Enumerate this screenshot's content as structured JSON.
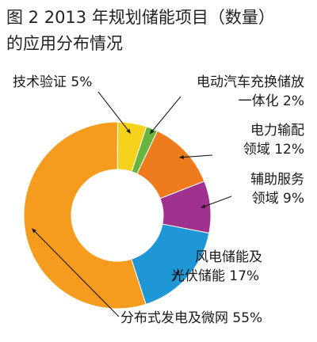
{
  "figure": {
    "title_line1": "图 2  2013 年规划储能项目（数量）",
    "title_line2": "的应用分布情况"
  },
  "chart_data": {
    "type": "pie",
    "style": "donut",
    "categories": [
      "技术验证",
      "电动汽车充换储放一体化",
      "电力输配领域",
      "辅助服务领域",
      "风电储能及光伏储能",
      "分布式发电及微网"
    ],
    "values": [
      5,
      2,
      12,
      9,
      17,
      55
    ],
    "unit": "%",
    "colors": [
      "#f7d21c",
      "#67b43f",
      "#ef7c1c",
      "#a0318f",
      "#1f96d6",
      "#f59b1e"
    ],
    "labels": [
      {
        "line1": "技术验证 5%",
        "line2": ""
      },
      {
        "line1": "电动汽车充换储放",
        "line2": "一体化 2%"
      },
      {
        "line1": "电力输配",
        "line2": "领域 12%"
      },
      {
        "line1": "辅助服务",
        "line2": "领域 9%"
      },
      {
        "line1": "风电储能及",
        "line2": "光伏储能 17%"
      },
      {
        "line1": "分布式发电及微网 55%",
        "line2": ""
      }
    ]
  }
}
